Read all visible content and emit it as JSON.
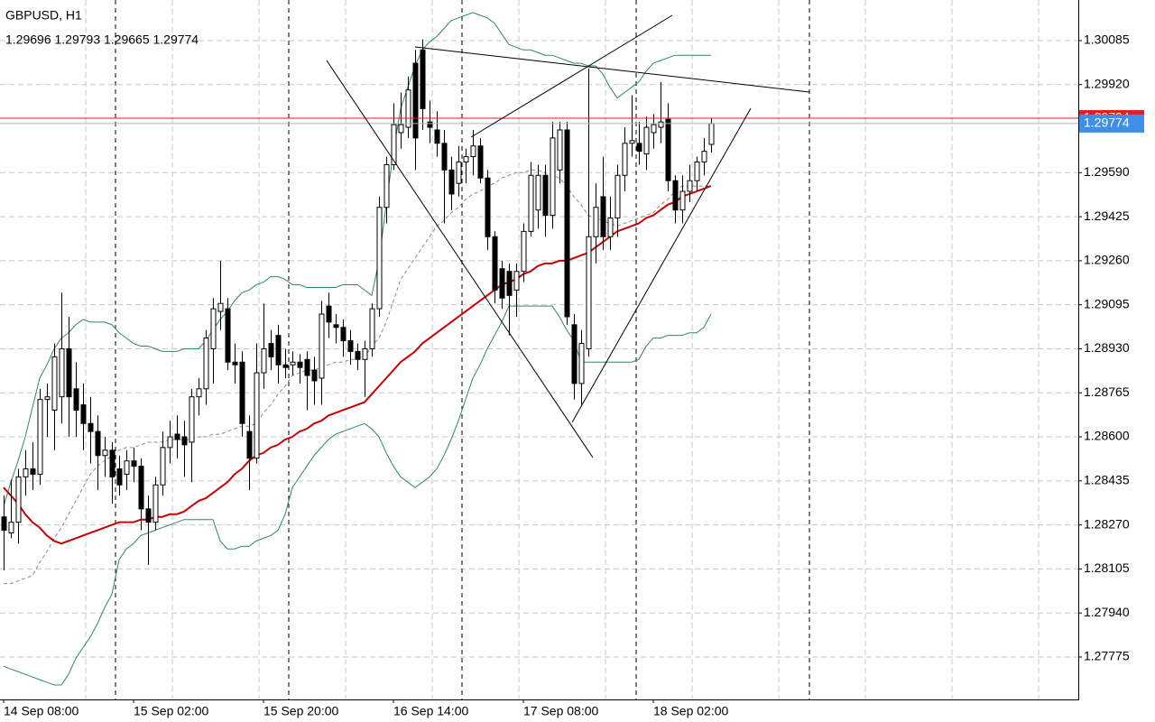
{
  "chart_data": {
    "type": "candlestick",
    "title": "GBPUSD, H1",
    "ohlc_readout": "1.29696 1.29793 1.29665 1.29774",
    "categories": [
      "14 Sep 08:00",
      null,
      null,
      null,
      null,
      null,
      null,
      null,
      null,
      null,
      null,
      null,
      null,
      null,
      null,
      null,
      null,
      null,
      "15 Sep 02:00",
      null,
      null,
      null,
      null,
      null,
      null,
      null,
      null,
      null,
      null,
      null,
      null,
      null,
      null,
      null,
      null,
      null,
      "15 Sep 20:00",
      null,
      null,
      null,
      null,
      null,
      null,
      null,
      null,
      null,
      null,
      null,
      null,
      null,
      null,
      null,
      null,
      null,
      "16 Sep 14:00",
      null,
      null,
      null,
      null,
      null,
      null,
      null,
      null,
      null,
      null,
      null,
      null,
      null,
      null,
      null,
      null,
      null,
      "17 Sep 08:00",
      null,
      null,
      null,
      null,
      null,
      null,
      null,
      null,
      null,
      null,
      null,
      null,
      null,
      null,
      null,
      null,
      null,
      "18 Sep 02:00",
      null,
      null,
      null,
      null,
      null,
      null,
      null,
      null
    ],
    "open": [
      1.283,
      1.2824,
      1.2828,
      1.2845,
      1.2848,
      1.2846,
      1.2874,
      1.287,
      1.2875,
      1.2893,
      1.2878,
      1.2872,
      1.2865,
      1.2862,
      1.2853,
      1.2855,
      1.2848,
      1.2846,
      1.2851,
      1.2849,
      1.2833,
      1.2828,
      1.2842,
      1.2856,
      1.2861,
      1.286,
      1.2858,
      1.2875,
      1.2878,
      1.2893,
      1.2907,
      1.2908,
      1.2888,
      1.2888,
      1.2862,
      1.2852,
      1.2884,
      1.2895,
      1.2898,
      1.2887,
      1.2887,
      1.2888,
      1.2889,
      1.2885,
      1.2882,
      1.2909,
      1.2902,
      1.2901,
      1.2896,
      1.2892,
      1.2889,
      1.2893,
      1.2908,
      1.2946,
      1.2962,
      1.2974,
      1.2976,
      1.3,
      1.3005,
      1.2978,
      1.2975,
      1.297,
      1.296,
      1.2955,
      1.2963,
      1.2965,
      1.2969,
      1.2957,
      1.2935,
      1.2923,
      1.2922,
      1.2915,
      1.2922,
      1.2937,
      1.2945,
      1.2958,
      1.2943,
      1.296,
      1.2975,
      1.2902,
      1.288,
      1.2893,
      1.2935,
      1.295,
      1.2935,
      1.2942,
      1.2958,
      1.297,
      1.297,
      1.2966,
      1.2974,
      1.2976,
      1.2979,
      1.2956,
      1.2945,
      1.2952,
      1.2956,
      1.2963,
      1.29696
    ],
    "high": [
      1.2838,
      1.2844,
      1.2848,
      1.2855,
      1.2858,
      1.2878,
      1.288,
      1.2895,
      1.2914,
      1.2905,
      1.2888,
      1.288,
      1.2875,
      1.2868,
      1.286,
      1.2858,
      1.2853,
      1.2855,
      1.2856,
      1.2852,
      1.2838,
      1.2845,
      1.2862,
      1.2866,
      1.2868,
      1.2866,
      1.2878,
      1.2882,
      1.29,
      1.2912,
      1.2926,
      1.2912,
      1.2895,
      1.2892,
      1.2868,
      1.2895,
      1.291,
      1.29,
      1.2902,
      1.2893,
      1.2892,
      1.2891,
      1.2892,
      1.289,
      1.2911,
      1.2914,
      1.2906,
      1.2904,
      1.29,
      1.2895,
      1.2896,
      1.291,
      1.295,
      1.2965,
      1.2985,
      1.2989,
      1.2995,
      1.3005,
      1.3009,
      1.2986,
      1.2982,
      1.2975,
      1.2965,
      1.2969,
      1.2968,
      1.2975,
      1.2972,
      1.296,
      1.2937,
      1.2926,
      1.2925,
      1.2925,
      1.294,
      1.2963,
      1.2962,
      1.2962,
      1.2978,
      1.2978,
      1.2978,
      1.2906,
      1.29,
      1.2998,
      1.2955,
      1.2965,
      1.295,
      1.2962,
      1.2976,
      1.2988,
      1.2978,
      1.298,
      1.2981,
      1.2993,
      1.2985,
      1.2958,
      1.2958,
      1.2962,
      1.2965,
      1.2972,
      1.29793
    ],
    "low": [
      1.281,
      1.2822,
      1.282,
      1.2838,
      1.284,
      1.2842,
      1.286,
      1.2855,
      1.2865,
      1.286,
      1.286,
      1.2855,
      1.285,
      1.284,
      1.2845,
      1.2835,
      1.2838,
      1.284,
      1.2843,
      1.2825,
      1.2812,
      1.2825,
      1.2838,
      1.285,
      1.2852,
      1.2845,
      1.2843,
      1.2868,
      1.2872,
      1.288,
      1.29,
      1.2885,
      1.288,
      1.286,
      1.284,
      1.285,
      1.2878,
      1.2885,
      1.288,
      1.2882,
      1.2883,
      1.288,
      1.287,
      1.2872,
      1.2872,
      1.2897,
      1.2895,
      1.289,
      1.2887,
      1.2885,
      1.2875,
      1.289,
      1.2905,
      1.294,
      1.296,
      1.2968,
      1.2972,
      1.296,
      1.2975,
      1.297,
      1.2965,
      1.294,
      1.2945,
      1.295,
      1.2955,
      1.2958,
      1.2955,
      1.293,
      1.291,
      1.2908,
      1.2898,
      1.2905,
      1.2918,
      1.2935,
      1.2938,
      1.2935,
      1.2938,
      1.2955,
      1.2902,
      1.2874,
      1.2872,
      1.289,
      1.2925,
      1.293,
      1.293,
      1.2935,
      1.2952,
      1.2965,
      1.2962,
      1.296,
      1.2968,
      1.297,
      1.2952,
      1.294,
      1.294,
      1.2948,
      1.2952,
      1.2958,
      1.29665
    ],
    "close": [
      1.2825,
      1.2828,
      1.2845,
      1.2848,
      1.2846,
      1.2874,
      1.2875,
      1.289,
      1.2893,
      1.2875,
      1.287,
      1.2865,
      1.2862,
      1.2853,
      1.2855,
      1.2845,
      1.2842,
      1.2851,
      1.2849,
      1.2833,
      1.2828,
      1.2842,
      1.2856,
      1.286,
      1.2859,
      1.2857,
      1.2875,
      1.2878,
      1.2897,
      1.2908,
      1.291,
      1.2888,
      1.2887,
      1.2865,
      1.2852,
      1.2884,
      1.2893,
      1.289,
      1.2887,
      1.2886,
      1.2888,
      1.2886,
      1.2883,
      1.2881,
      1.2906,
      1.2903,
      1.2901,
      1.2896,
      1.2892,
      1.2889,
      1.2893,
      1.2908,
      1.2946,
      1.2962,
      1.2977,
      1.2977,
      1.299,
      1.2972,
      1.2983,
      1.2976,
      1.297,
      1.296,
      1.2951,
      1.2963,
      1.2965,
      1.2969,
      1.2957,
      1.2935,
      1.2915,
      1.2912,
      1.2913,
      1.2922,
      1.2937,
      1.2958,
      1.2958,
      1.2943,
      1.2972,
      1.2975,
      1.2905,
      1.288,
      1.2895,
      1.2935,
      1.2946,
      1.2935,
      1.2942,
      1.2958,
      1.297,
      1.2971,
      1.2967,
      1.2976,
      1.2977,
      1.2978,
      1.2956,
      1.2945,
      1.2952,
      1.2956,
      1.2963,
      1.2967,
      1.29774
    ],
    "up_color": "#ffffff",
    "down_color": "#000000",
    "overlays": [
      {
        "color": "#2e8b57",
        "line_width": 1,
        "values": [
          1.2834,
          1.2843,
          1.2851,
          1.286,
          1.2871,
          1.2882,
          1.2887,
          1.2893,
          1.2897,
          1.2899,
          1.2902,
          1.2904,
          1.2903,
          1.2903,
          1.2903,
          1.2902,
          1.2899,
          1.2897,
          1.2895,
          1.2894,
          1.2894,
          1.2893,
          1.2892,
          1.2892,
          1.2892,
          1.2893,
          1.2893,
          1.2893,
          1.2896,
          1.29,
          1.2904,
          1.2907,
          1.2911,
          1.2914,
          1.2915,
          1.2917,
          1.2918,
          1.292,
          1.292,
          1.2919,
          1.2917,
          1.2917,
          1.2916,
          1.2916,
          1.2916,
          1.2916,
          1.2916,
          1.2917,
          1.2917,
          1.2917,
          1.2915,
          1.2913,
          1.2926,
          1.2947,
          1.2967,
          1.2983,
          1.2991,
          1.2999,
          1.3005,
          1.3008,
          1.301,
          1.3013,
          1.3016,
          1.3017,
          1.3018,
          1.3019,
          1.3018,
          1.3017,
          1.3015,
          1.3011,
          1.3007,
          1.3006,
          1.3005,
          1.3005,
          1.3004,
          1.3003,
          1.3003,
          1.3002,
          1.3001,
          1.3,
          1.3,
          1.2999,
          1.2999,
          1.2996,
          1.2991,
          1.2987,
          1.2989,
          1.2991,
          1.2993,
          1.2997,
          1.3,
          1.3001,
          1.3002,
          1.3003,
          1.3003,
          1.3003,
          1.3003,
          1.3003,
          1.3003
        ]
      },
      {
        "color": "#2e8b57",
        "line_width": 1,
        "values": [
          1.2774,
          1.2773,
          1.2772,
          1.2771,
          1.277,
          1.2769,
          1.2768,
          1.2767,
          1.2767,
          1.2771,
          1.2777,
          1.2781,
          1.2785,
          1.279,
          1.2796,
          1.2801,
          1.2814,
          1.2818,
          1.282,
          1.2823,
          1.2824,
          1.2825,
          1.2826,
          1.2827,
          1.2828,
          1.2829,
          1.2829,
          1.2829,
          1.2829,
          1.2829,
          1.2821,
          1.2818,
          1.2818,
          1.2819,
          1.2819,
          1.2821,
          1.2822,
          1.2823,
          1.2825,
          1.2831,
          1.2841,
          1.2845,
          1.2849,
          1.2853,
          1.2856,
          1.2859,
          1.2861,
          1.2862,
          1.2863,
          1.2864,
          1.2865,
          1.2863,
          1.286,
          1.2854,
          1.2849,
          1.2845,
          1.2843,
          1.2841,
          1.2843,
          1.2845,
          1.2848,
          1.2853,
          1.2859,
          1.2866,
          1.2874,
          1.2882,
          1.2887,
          1.2893,
          1.2898,
          1.2903,
          1.2909,
          1.2909,
          1.2909,
          1.2909,
          1.2909,
          1.2909,
          1.2909,
          1.2905,
          1.29,
          1.2896,
          1.2888,
          1.2888,
          1.2888,
          1.2888,
          1.2888,
          1.2888,
          1.2888,
          1.2888,
          1.2889,
          1.2894,
          1.2897,
          1.2897,
          1.2898,
          1.2898,
          1.2898,
          1.2899,
          1.2899,
          1.2901,
          1.2906
        ]
      },
      {
        "color": "#8a8a8a",
        "line_width": 1,
        "style": "dashed",
        "values": [
          1.2805,
          1.2805,
          1.2806,
          1.2807,
          1.2808,
          1.2813,
          1.2817,
          1.2822,
          1.2826,
          1.2831,
          1.2836,
          1.2841,
          1.2846,
          1.2849,
          1.2851,
          1.2853,
          1.2855,
          1.2856,
          1.2856,
          1.2857,
          1.2858,
          1.2858,
          1.2858,
          1.2859,
          1.2859,
          1.2859,
          1.2859,
          1.286,
          1.286,
          1.2861,
          1.2861,
          1.2862,
          1.2863,
          1.2864,
          1.2864,
          1.2865,
          1.2869,
          1.2872,
          1.2876,
          1.2879,
          1.2883,
          1.2884,
          1.2885,
          1.2885,
          1.2886,
          1.2887,
          1.2888,
          1.2888,
          1.2889,
          1.2889,
          1.289,
          1.2894,
          1.2897,
          1.2903,
          1.2911,
          1.2919,
          1.2923,
          1.2927,
          1.2931,
          1.2935,
          1.2939,
          1.2941,
          1.2944,
          1.2946,
          1.2949,
          1.2951,
          1.2952,
          1.2954,
          1.2955,
          1.2957,
          1.2958,
          1.2959,
          1.2959,
          1.296,
          1.296,
          1.2959,
          1.2958,
          1.2957,
          1.2954,
          1.295,
          1.2947,
          1.2943,
          1.2942,
          1.2941,
          1.294,
          1.2939,
          1.294,
          1.2941,
          1.2942,
          1.2943,
          1.2944,
          1.2947,
          1.2949,
          1.2952,
          1.2954,
          1.2954,
          1.2954,
          1.2954,
          1.2954
        ]
      },
      {
        "color": "#cc0000",
        "line_width": 2,
        "values": [
          1.2841,
          1.2838,
          1.2835,
          1.2831,
          1.2828,
          1.2826,
          1.2823,
          1.2821,
          1.282,
          1.2821,
          1.2822,
          1.2823,
          1.2824,
          1.2825,
          1.2826,
          1.2827,
          1.2828,
          1.2828,
          1.2828,
          1.2829,
          1.2829,
          1.283,
          1.283,
          1.2831,
          1.2831,
          1.2832,
          1.2834,
          1.2836,
          1.2837,
          1.2839,
          1.2841,
          1.2843,
          1.2846,
          1.2848,
          1.2851,
          1.2853,
          1.2854,
          1.2856,
          1.2857,
          1.2859,
          1.286,
          1.2862,
          1.2863,
          1.2865,
          1.2866,
          1.2868,
          1.2869,
          1.287,
          1.2871,
          1.2872,
          1.2873,
          1.2876,
          1.2879,
          1.2882,
          1.2885,
          1.2888,
          1.289,
          1.2892,
          1.2895,
          1.2897,
          1.2899,
          1.2901,
          1.2903,
          1.2905,
          1.2907,
          1.2909,
          1.2911,
          1.2913,
          1.2915,
          1.2917,
          1.2918,
          1.2919,
          1.2921,
          1.2922,
          1.2924,
          1.2925,
          1.2925,
          1.2926,
          1.2926,
          1.2927,
          1.2928,
          1.2929,
          1.2931,
          1.2933,
          1.2935,
          1.2937,
          1.2938,
          1.2939,
          1.294,
          1.2942,
          1.2943,
          1.2945,
          1.2947,
          1.2948,
          1.295,
          1.2951,
          1.2952,
          1.2953,
          1.2954
        ]
      }
    ],
    "ask": {
      "value": 1.29794,
      "color": "#e0201c"
    },
    "bid": {
      "value": 1.29774,
      "color": "#3d8fe8",
      "line_color": "#a8b4c0"
    },
    "ylim": [
      1.27616,
      1.30237
    ],
    "yticks": [
      1.30085,
      {
        "value": 1.2992,
        "label": "1.29920"
      },
      {
        "value": 1.2959,
        "label": "1.29590"
      },
      1.29425,
      {
        "value": 1.2926,
        "label": "1.29260"
      },
      1.29095,
      {
        "value": 1.2893,
        "label": "1.28930"
      },
      1.28765,
      {
        "value": 1.286,
        "label": "1.28600"
      },
      1.28435,
      {
        "value": 1.2827,
        "label": "1.28270"
      },
      1.28105,
      {
        "value": 1.2794,
        "label": "1.27940"
      },
      1.27775
    ],
    "grid": true
  }
}
